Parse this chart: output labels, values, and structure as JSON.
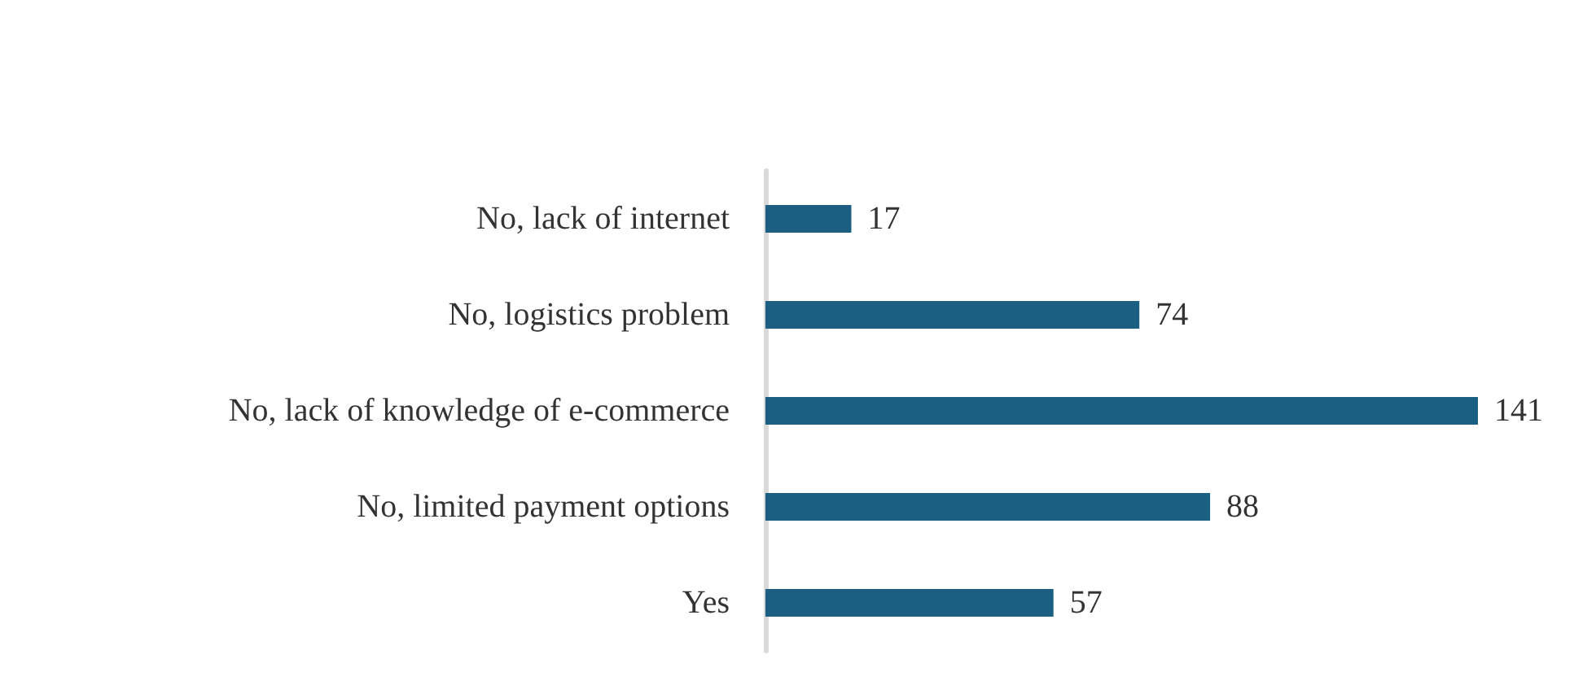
{
  "chart_data": {
    "type": "bar",
    "orientation": "horizontal",
    "categories": [
      "No, lack of internet",
      "No, logistics problem",
      "No, lack of knowledge of e-commerce",
      "No, limited payment options",
      "Yes"
    ],
    "values": [
      17,
      74,
      141,
      88,
      57
    ],
    "color": "#1b5f82",
    "data_labels": true,
    "grid": false
  }
}
